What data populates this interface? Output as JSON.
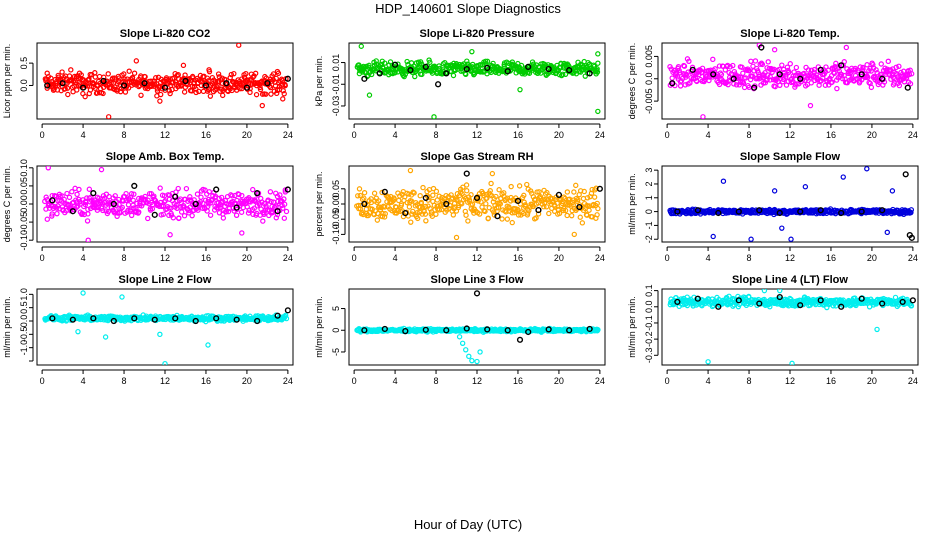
{
  "title": "HDP_140601  Slope Diagnostics",
  "xlabel": "Hour of Day (UTC)",
  "chart_data": [
    {
      "type": "scatter",
      "title": "Slope Li-820 CO2",
      "ylabel": "Licor ppm per min.",
      "color": "#ff0000",
      "xlim": [
        -0.5,
        24.5
      ],
      "xticks": [
        0,
        4,
        8,
        12,
        16,
        20,
        24
      ],
      "ylim": [
        -0.75,
        0.95
      ],
      "yticks": [
        -1.0,
        0.0,
        0.5
      ],
      "yticklabels": [
        "-1.0",
        "0.0",
        "0.5"
      ],
      "base": 0.05,
      "spread": 0.28,
      "points": [
        [
          1.5,
          -0.1
        ],
        [
          2.8,
          0.35
        ],
        [
          4.2,
          -0.25
        ],
        [
          6.5,
          -0.7
        ],
        [
          9.2,
          0.55
        ],
        [
          11.5,
          -0.35
        ],
        [
          13.8,
          0.45
        ],
        [
          16.3,
          0.35
        ],
        [
          19.2,
          0.9
        ],
        [
          21.5,
          -0.45
        ],
        [
          23.5,
          -0.3
        ]
      ],
      "black": [
        [
          0.5,
          0.0
        ],
        [
          2,
          0.05
        ],
        [
          4,
          -0.05
        ],
        [
          6,
          0.1
        ],
        [
          8,
          0.0
        ],
        [
          10,
          0.05
        ],
        [
          12,
          -0.05
        ],
        [
          14,
          0.1
        ],
        [
          16,
          0.0
        ],
        [
          18,
          0.05
        ],
        [
          20,
          -0.05
        ],
        [
          22,
          0.05
        ],
        [
          24,
          0.15
        ]
      ]
    },
    {
      "type": "scatter",
      "title": "Slope Li-820 Pressure",
      "ylabel": "kPa per min.",
      "color": "#00cc00",
      "xlim": [
        -0.5,
        24.5
      ],
      "xticks": [
        0,
        4,
        8,
        12,
        16,
        20,
        24
      ],
      "ylim": [
        -0.042,
        0.028
      ],
      "yticks": [
        -0.03,
        -0.01,
        0.01
      ],
      "yticklabels": [
        "-0.03",
        "-0.01",
        "0.01"
      ],
      "base": 0.004,
      "spread": 0.008,
      "points": [
        [
          0.7,
          0.025
        ],
        [
          1.5,
          -0.02
        ],
        [
          7.8,
          -0.04
        ],
        [
          11.5,
          0.02
        ],
        [
          23.8,
          -0.035
        ],
        [
          23.8,
          0.018
        ],
        [
          16.2,
          -0.015
        ]
      ],
      "black": [
        [
          1,
          -0.005
        ],
        [
          2.5,
          0.0
        ],
        [
          4,
          0.008
        ],
        [
          5.5,
          0.003
        ],
        [
          7,
          0.006
        ],
        [
          8.2,
          -0.01
        ],
        [
          9,
          0.0
        ],
        [
          11,
          0.004
        ],
        [
          13,
          0.005
        ],
        [
          15,
          0.002
        ],
        [
          17,
          0.006
        ],
        [
          19,
          0.004
        ],
        [
          21,
          0.003
        ],
        [
          23,
          0.0
        ]
      ]
    },
    {
      "type": "scatter",
      "title": "Slope Li-820 Temp.",
      "ylabel": "degrees C per min.",
      "color": "#ff00ff",
      "xlim": [
        -0.5,
        24.5
      ],
      "xticks": [
        0,
        4,
        8,
        12,
        16,
        20,
        24
      ],
      "ylim": [
        -0.009,
        0.008
      ],
      "yticks": [
        -0.005,
        0.0,
        0.005
      ],
      "yticklabels": [
        "-0.005",
        "0.0",
        "0.005"
      ],
      "base": 0.0008,
      "spread": 0.0035,
      "points": [
        [
          3.5,
          -0.0085
        ],
        [
          9,
          0.0075
        ],
        [
          10.5,
          0.0065
        ],
        [
          14,
          -0.006
        ],
        [
          17.5,
          0.007
        ]
      ],
      "black": [
        [
          0.5,
          -0.001
        ],
        [
          2.5,
          0.002
        ],
        [
          4.5,
          0.001
        ],
        [
          6.5,
          0.0
        ],
        [
          8.5,
          -0.002
        ],
        [
          9.2,
          0.007
        ],
        [
          11,
          0.001
        ],
        [
          13,
          0.0
        ],
        [
          15,
          0.002
        ],
        [
          17,
          0.003
        ],
        [
          19,
          0.001
        ],
        [
          21,
          0.0
        ],
        [
          23.5,
          -0.002
        ]
      ]
    },
    {
      "type": "scatter",
      "title": "Slope Amb. Box Temp.",
      "ylabel": "degrees C per min.",
      "color": "#ff00ff",
      "xlim": [
        -0.5,
        24.5
      ],
      "xticks": [
        0,
        4,
        8,
        12,
        16,
        20,
        24
      ],
      "ylim": [
        -0.105,
        0.105
      ],
      "yticks": [
        -0.1,
        -0.05,
        0.0,
        0.05,
        0.1
      ],
      "yticklabels": [
        "-0.10",
        "-0.05",
        "0.00",
        "0.05",
        "0.10"
      ],
      "base": 0.0,
      "spread": 0.045,
      "points": [
        [
          0.6,
          0.1
        ],
        [
          4.5,
          -0.1
        ],
        [
          5.8,
          0.095
        ],
        [
          12.5,
          -0.085
        ],
        [
          19.5,
          -0.08
        ]
      ],
      "black": [
        [
          1,
          0.01
        ],
        [
          3,
          -0.02
        ],
        [
          5,
          0.03
        ],
        [
          7,
          0.0
        ],
        [
          9,
          0.05
        ],
        [
          11,
          -0.03
        ],
        [
          13,
          0.02
        ],
        [
          15,
          0.0
        ],
        [
          17,
          0.04
        ],
        [
          19,
          -0.01
        ],
        [
          21,
          0.03
        ],
        [
          23,
          -0.02
        ],
        [
          24,
          0.04
        ]
      ]
    },
    {
      "type": "scatter",
      "title": "Slope Gas Stream RH",
      "ylabel": "percent per min.",
      "color": "#ffa500",
      "xlim": [
        -0.5,
        24.5
      ],
      "xticks": [
        0,
        4,
        8,
        12,
        16,
        20,
        24
      ],
      "ylim": [
        -0.125,
        0.125
      ],
      "yticks": [
        -0.1,
        -0.05,
        0.0,
        0.05
      ],
      "yticklabels": [
        "-0.10",
        "-0.05",
        "0.00",
        "0.05"
      ],
      "base": 0.0,
      "spread": 0.065,
      "points": [
        [
          5.5,
          0.11
        ],
        [
          10,
          -0.11
        ],
        [
          13.5,
          0.1
        ],
        [
          21.5,
          -0.1
        ]
      ],
      "black": [
        [
          1,
          0.0
        ],
        [
          3,
          0.04
        ],
        [
          5,
          -0.03
        ],
        [
          7,
          0.02
        ],
        [
          9,
          0.0
        ],
        [
          11,
          0.1
        ],
        [
          12,
          0.02
        ],
        [
          14,
          -0.04
        ],
        [
          16,
          0.01
        ],
        [
          18,
          -0.02
        ],
        [
          20,
          0.03
        ],
        [
          22,
          -0.01
        ],
        [
          24,
          0.05
        ]
      ]
    },
    {
      "type": "scatter",
      "title": "Slope Sample Flow",
      "ylabel": "ml/min per min.",
      "color": "#0000dd",
      "xlim": [
        -0.5,
        24.5
      ],
      "xticks": [
        0,
        4,
        8,
        12,
        16,
        20,
        24
      ],
      "ylim": [
        -2.2,
        3.3
      ],
      "yticks": [
        -2,
        -1,
        0,
        1,
        2,
        3
      ],
      "yticklabels": [
        "-2",
        "-1",
        "0",
        "1",
        "2",
        "3"
      ],
      "base": 0.0,
      "spread": 0.2,
      "points": [
        [
          4.5,
          -1.8
        ],
        [
          5.5,
          2.2
        ],
        [
          8.2,
          -2.0
        ],
        [
          12.1,
          -2.0
        ],
        [
          13.5,
          1.8
        ],
        [
          17.2,
          2.5
        ],
        [
          19.5,
          3.1
        ],
        [
          21.5,
          -1.5
        ],
        [
          22,
          1.5
        ],
        [
          10.5,
          1.5
        ],
        [
          11.2,
          -1.2
        ]
      ],
      "black": [
        [
          1,
          0.0
        ],
        [
          3,
          0.1
        ],
        [
          5,
          -0.1
        ],
        [
          7,
          0.0
        ],
        [
          9,
          0.1
        ],
        [
          11,
          -0.1
        ],
        [
          13,
          0.0
        ],
        [
          15,
          0.1
        ],
        [
          17,
          -0.1
        ],
        [
          19,
          0.0
        ],
        [
          21,
          0.1
        ],
        [
          23.3,
          2.7
        ],
        [
          23.7,
          -1.7
        ],
        [
          23.9,
          -1.9
        ]
      ]
    },
    {
      "type": "scatter",
      "title": "Slope Line 2 Flow",
      "ylabel": "ml/min per min.",
      "color": "#00eeee",
      "xlim": [
        -0.5,
        24.5
      ],
      "xticks": [
        0,
        4,
        8,
        12,
        16,
        20,
        24
      ],
      "ylim": [
        -1.65,
        1.2
      ],
      "yticks": [
        -1.5,
        -1.0,
        -0.5,
        0.0,
        0.5,
        1.0
      ],
      "yticklabels": [
        "",
        "-1.0",
        "-0.5",
        "0.0",
        "0.5",
        "1.0"
      ],
      "base": 0.1,
      "spread": 0.12,
      "points": [
        [
          4,
          1.05
        ],
        [
          12,
          -1.6
        ],
        [
          16.2,
          -0.9
        ],
        [
          7.8,
          0.9
        ],
        [
          11.5,
          -0.5
        ],
        [
          3.5,
          -0.4
        ],
        [
          6.2,
          -0.6
        ]
      ],
      "black": [
        [
          1,
          0.1
        ],
        [
          3,
          0.05
        ],
        [
          5,
          0.1
        ],
        [
          7,
          0.0
        ],
        [
          9,
          0.1
        ],
        [
          11,
          0.05
        ],
        [
          13,
          0.1
        ],
        [
          15,
          0.0
        ],
        [
          17,
          0.1
        ],
        [
          19,
          0.05
        ],
        [
          21,
          0.0
        ],
        [
          23,
          0.2
        ],
        [
          24,
          0.4
        ]
      ]
    },
    {
      "type": "scatter",
      "title": "Slope Line 3 Flow",
      "ylabel": "ml/min per min.",
      "color": "#00eeee",
      "xlim": [
        -0.5,
        24.5
      ],
      "xticks": [
        0,
        4,
        8,
        12,
        16,
        20,
        24
      ],
      "ylim": [
        -8,
        9.5
      ],
      "yticks": [
        -5,
        0,
        5
      ],
      "yticklabels": [
        "-5",
        "0",
        "5"
      ],
      "base": 0.0,
      "spread": 0.4,
      "points": [
        [
          10.6,
          -3
        ],
        [
          10.9,
          -4.5
        ],
        [
          11.2,
          -6
        ],
        [
          11.5,
          -7
        ],
        [
          12,
          -7.2
        ],
        [
          12.3,
          -5
        ],
        [
          10.3,
          -1.5
        ]
      ],
      "black": [
        [
          1,
          0.0
        ],
        [
          3,
          0.3
        ],
        [
          5,
          -0.2
        ],
        [
          7,
          0.1
        ],
        [
          9,
          0.0
        ],
        [
          11,
          0.4
        ],
        [
          12,
          8.5
        ],
        [
          13,
          0.2
        ],
        [
          15,
          0.0
        ],
        [
          16.2,
          -2.2
        ],
        [
          17,
          -0.4
        ],
        [
          19,
          0.2
        ],
        [
          21,
          0.0
        ],
        [
          23,
          0.3
        ]
      ]
    },
    {
      "type": "scatter",
      "title": "Slope Line 4 (LT) Flow",
      "ylabel": "ml/min per min.",
      "color": "#00eeee",
      "xlim": [
        -0.5,
        24.5
      ],
      "xticks": [
        0,
        4,
        8,
        12,
        16,
        20,
        24
      ],
      "ylim": [
        -0.36,
        0.11
      ],
      "yticks": [
        -0.3,
        -0.2,
        -0.1,
        0.0,
        0.1
      ],
      "yticklabels": [
        "-0.3",
        "-0.2",
        "-0.1",
        "0.0",
        "0.1"
      ],
      "base": 0.03,
      "spread": 0.035,
      "points": [
        [
          4,
          -0.34
        ],
        [
          12.2,
          -0.35
        ],
        [
          20.5,
          -0.14
        ],
        [
          9.5,
          0.1
        ],
        [
          11,
          0.1
        ]
      ],
      "black": [
        [
          1,
          0.03
        ],
        [
          3,
          0.05
        ],
        [
          5,
          0.0
        ],
        [
          7,
          0.04
        ],
        [
          9,
          0.02
        ],
        [
          11,
          0.06
        ],
        [
          13,
          0.01
        ],
        [
          15,
          0.04
        ],
        [
          17,
          0.0
        ],
        [
          19,
          0.05
        ],
        [
          21,
          0.02
        ],
        [
          23,
          0.03
        ],
        [
          24,
          0.04
        ]
      ]
    }
  ]
}
